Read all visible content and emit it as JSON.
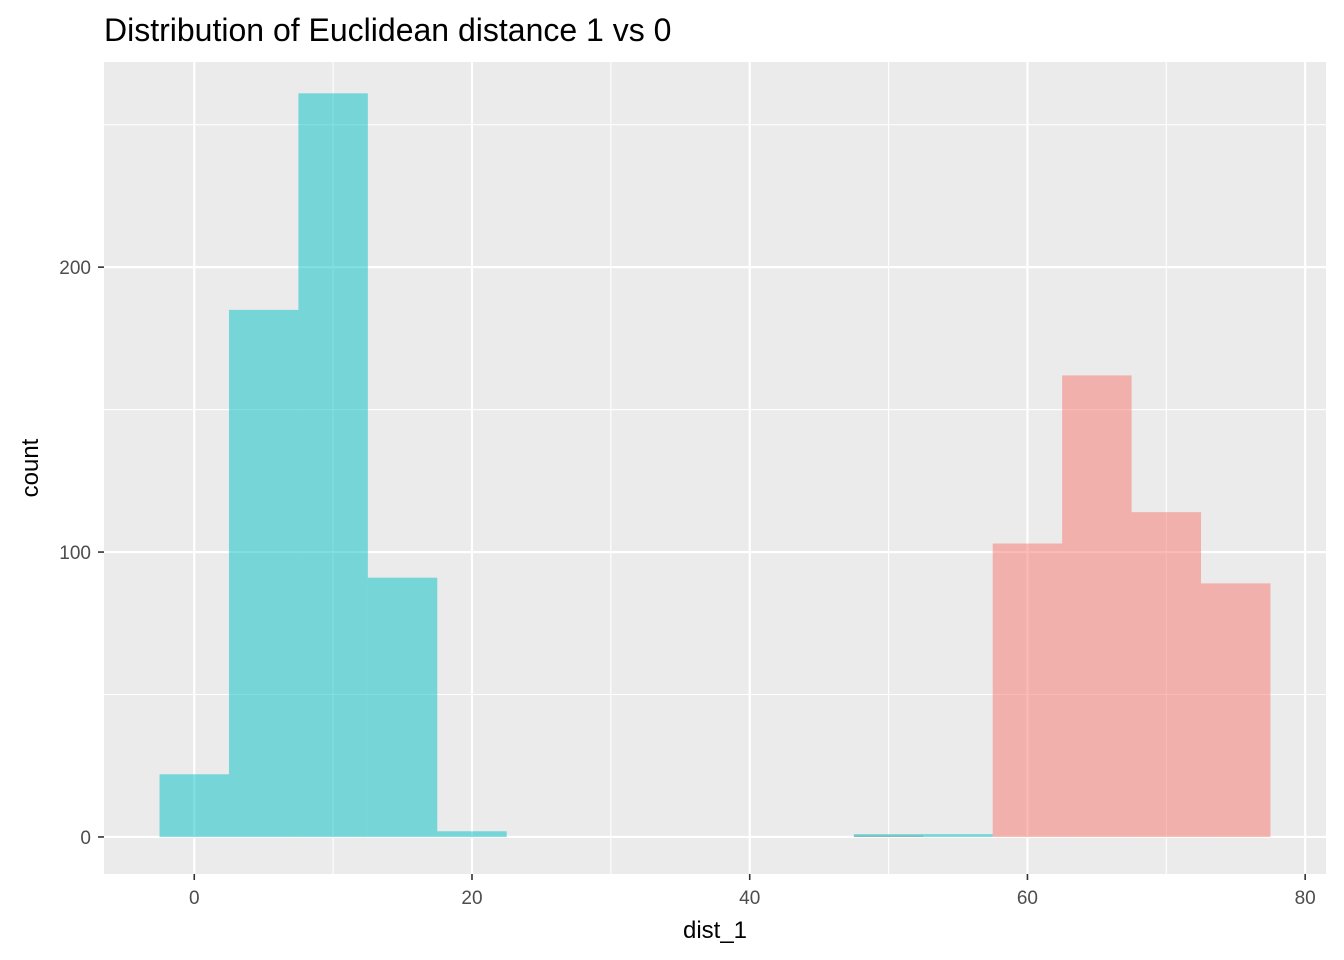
{
  "chart_data": {
    "type": "bar",
    "title": "Distribution of Euclidean distance 1 vs 0",
    "xlabel": "dist_1",
    "ylabel": "count",
    "xlim": [
      -6.5,
      81.5
    ],
    "ylim": [
      -13,
      272
    ],
    "x_ticks": [
      0,
      20,
      40,
      60,
      80
    ],
    "y_ticks": [
      0,
      100,
      200
    ],
    "x_tick_labels": [
      "0",
      "20",
      "40",
      "60",
      "80"
    ],
    "y_tick_labels": [
      "0",
      "100",
      "200"
    ],
    "bin_width": 5,
    "grid": true,
    "legend": "none",
    "colors": {
      "series_a": "#00BFC4",
      "series_b": "#F8766D",
      "panel": "#EBEBEB",
      "grid": "#FFFFFF"
    },
    "series": [
      {
        "color": "#F8766D",
        "bins": [
          {
            "x": 50,
            "count": 0.5
          },
          {
            "x": 60,
            "count": 103
          },
          {
            "x": 65,
            "count": 162
          },
          {
            "x": 70,
            "count": 114
          },
          {
            "x": 75,
            "count": 89
          }
        ]
      },
      {
        "color": "#00BFC4",
        "bins": [
          {
            "x": 0,
            "count": 22
          },
          {
            "x": 5,
            "count": 185
          },
          {
            "x": 10,
            "count": 261
          },
          {
            "x": 15,
            "count": 91
          },
          {
            "x": 20,
            "count": 2
          },
          {
            "x": 50,
            "count": 1
          },
          {
            "x": 55,
            "count": 1
          }
        ]
      }
    ]
  }
}
